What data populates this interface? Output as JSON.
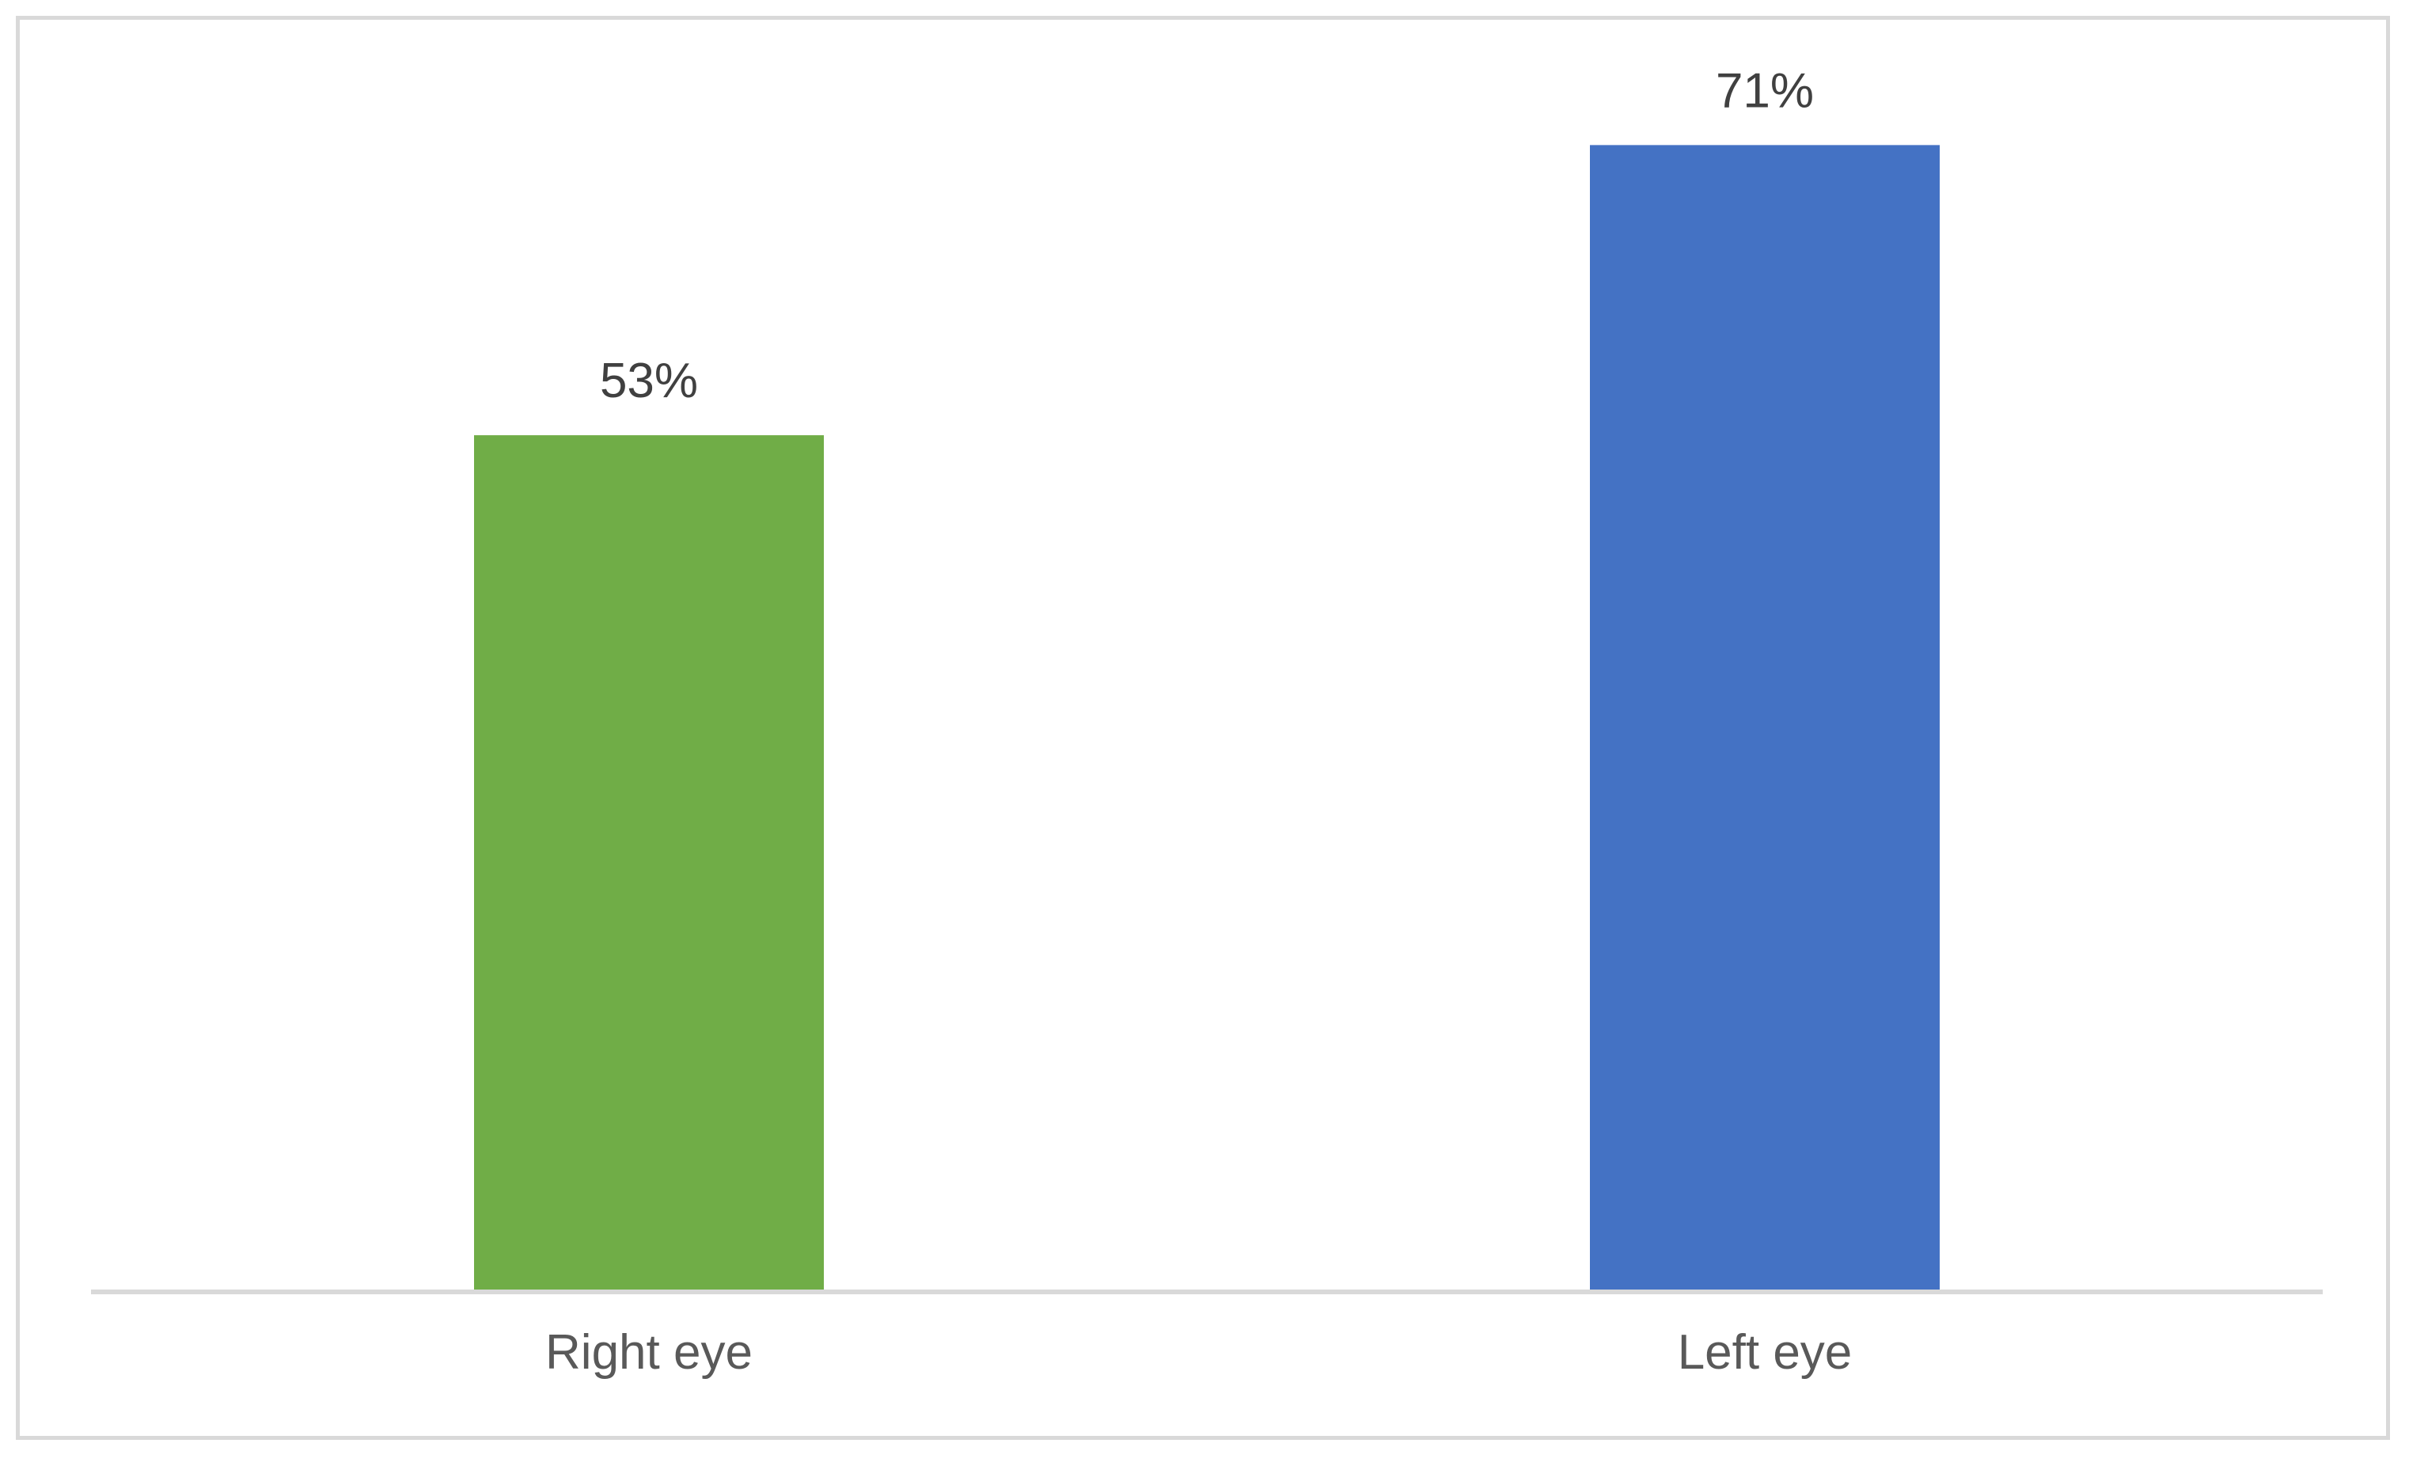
{
  "chart_data": {
    "type": "bar",
    "title": "",
    "xlabel": "",
    "ylabel": "",
    "categories": [
      "Right eye",
      "Left eye"
    ],
    "values": [
      53,
      71
    ],
    "value_labels": [
      "53%",
      "71%"
    ],
    "bar_colors": [
      "#70AD47",
      "#4472C4"
    ],
    "ylim": [
      0,
      80
    ],
    "grid": false,
    "legend": "none"
  },
  "style": {
    "axis_color": "#d9d9d9",
    "frame_color": "#d9d9d9"
  }
}
